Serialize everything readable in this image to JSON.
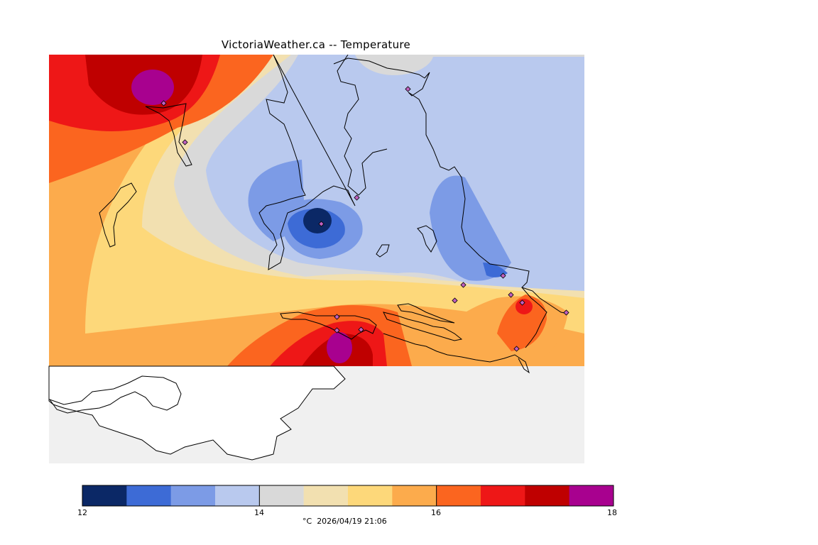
{
  "title": "VictoriaWeather.ca -- Temperature",
  "colorbar": {
    "colors": [
      "#0b2866",
      "#3d6bd6",
      "#7c9be6",
      "#b9c9ee",
      "#d9d9d9",
      "#f2e0b0",
      "#fdd87a",
      "#fcab4c",
      "#fb651f",
      "#ee1717",
      "#bf0000",
      "#a8018f"
    ],
    "ticks": [
      {
        "label": "12"
      },
      {
        "label": "14"
      },
      {
        "label": "16"
      },
      {
        "label": "18"
      }
    ]
  },
  "footer": {
    "unit": "°C",
    "timestamp": "2026/04/19 21:06"
  },
  "legend_colors": {
    "no_data": "#f0f0f0",
    "land_outside": "#ffffff",
    "coastline": "#000000",
    "station_marker": "#c060c0"
  }
}
